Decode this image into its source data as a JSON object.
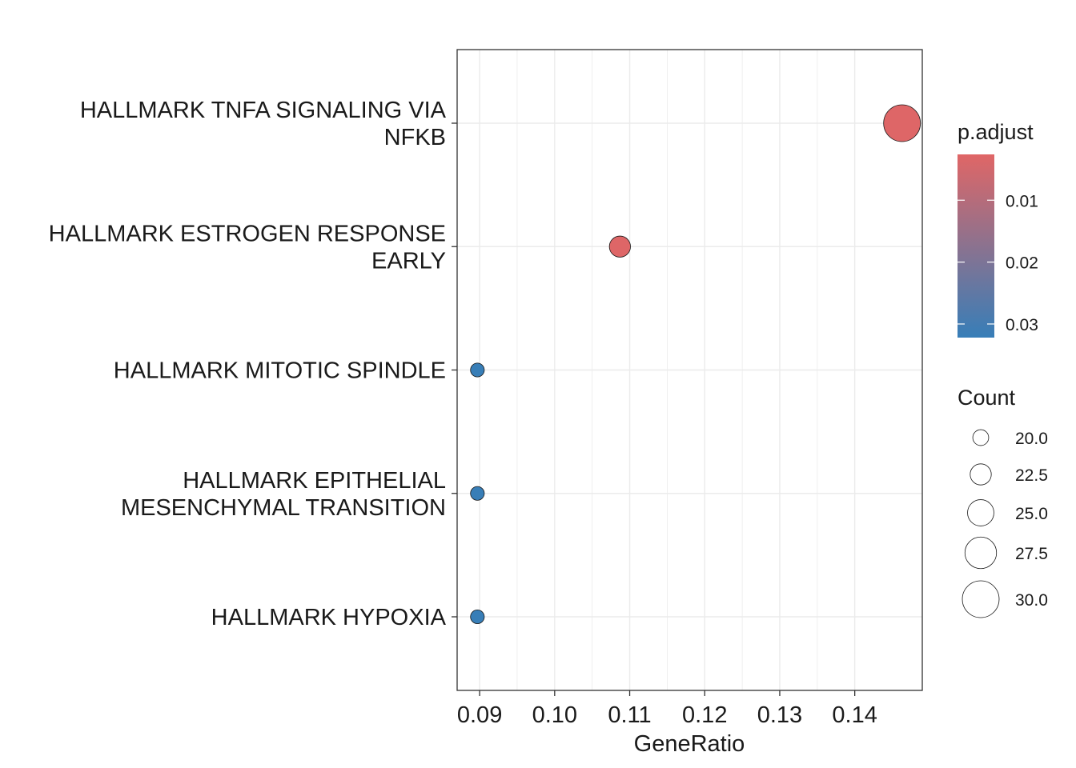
{
  "chart_data": {
    "type": "scatter",
    "title": "",
    "xlabel": "GeneRatio",
    "ylabel": "",
    "xlim": [
      0.087,
      0.149
    ],
    "xticks": [
      0.09,
      0.1,
      0.11,
      0.12,
      0.13,
      0.14
    ],
    "xtick_labels": [
      "0.09",
      "0.10",
      "0.11",
      "0.12",
      "0.13",
      "0.14"
    ],
    "grid": true,
    "categories": [
      [
        "HALLMARK TNFA SIGNALING VIA",
        "NFKB"
      ],
      [
        "HALLMARK ESTROGEN RESPONSE",
        "EARLY"
      ],
      [
        "HALLMARK MITOTIC SPINDLE"
      ],
      [
        "HALLMARK EPITHELIAL",
        "MESENCHYMAL TRANSITION"
      ],
      [
        "HALLMARK HYPOXIA"
      ]
    ],
    "points": [
      {
        "x": 0.1463,
        "count": 30,
        "p_adjust": 0.003
      },
      {
        "x": 0.1087,
        "count": 22.5,
        "p_adjust": 0.003
      },
      {
        "x": 0.0897,
        "count": 19,
        "p_adjust": 0.032
      },
      {
        "x": 0.0897,
        "count": 19,
        "p_adjust": 0.032
      },
      {
        "x": 0.0897,
        "count": 19,
        "p_adjust": 0.032
      }
    ],
    "color_legend": {
      "title": "p.adjust",
      "placement": "right",
      "range": [
        0.0026,
        0.0322
      ],
      "ticks": [
        0.01,
        0.02,
        0.03
      ],
      "tick_labels": [
        "0.01",
        "0.02",
        "0.03"
      ],
      "low_color": "#E06666",
      "high_color": "#377EB8"
    },
    "size_legend": {
      "title": "Count",
      "placement": "right",
      "range": [
        17,
        30
      ],
      "values": [
        20.0,
        22.5,
        25.0,
        27.5,
        30.0
      ],
      "labels": [
        "20.0",
        "22.5",
        "25.0",
        "27.5",
        "30.0"
      ]
    },
    "colors": {
      "panel_border": "#333333",
      "grid": "#EBEBEB",
      "point_stroke": "#1a1a1a"
    }
  }
}
